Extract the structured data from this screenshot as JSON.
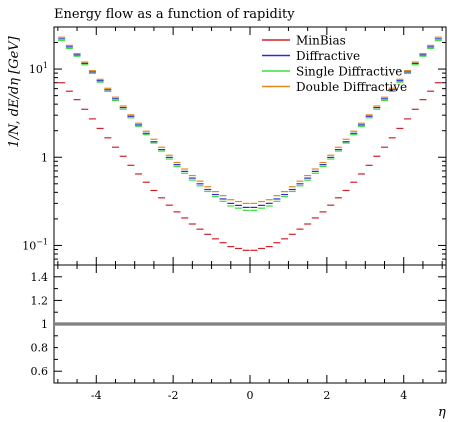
{
  "chart_data": {
    "type": "scatter",
    "title": "Energy flow as a function of rapidity",
    "xlabel": "η",
    "ylabel": "1/N_ev dE/dη [GeV]",
    "ylabel_parts": {
      "main": "1/N, dE/dη [",
      "unit": "GeV",
      "end": "]"
    },
    "xlim": [
      -5.1,
      5.1
    ],
    "ylim": [
      0.06,
      30
    ],
    "yscale": "log",
    "grid": false,
    "legend_position": "top-right",
    "main_y_ticks": [
      {
        "value": 0.1,
        "label": "10",
        "exp": "−1"
      },
      {
        "value": 1,
        "label": "1",
        "exp": ""
      },
      {
        "value": 10,
        "label": "10",
        "exp": "1"
      }
    ],
    "x_ticks": [
      {
        "value": -4,
        "label": "-4"
      },
      {
        "value": -2,
        "label": "-2"
      },
      {
        "value": 0,
        "label": "0"
      },
      {
        "value": 2,
        "label": "2"
      },
      {
        "value": 4,
        "label": "4"
      }
    ],
    "ratio_panel": {
      "ylim": [
        0.5,
        1.5
      ],
      "y_ticks": [
        {
          "value": 0.6,
          "label": "0.6"
        },
        {
          "value": 0.8,
          "label": "0.8"
        },
        {
          "value": 1.0,
          "label": "1"
        },
        {
          "value": 1.2,
          "label": "1.2"
        },
        {
          "value": 1.4,
          "label": "1.4"
        }
      ],
      "reference_value": 1.0,
      "band_color": "#999999"
    },
    "bins": {
      "eta_min": -5.0,
      "eta_max": 5.0,
      "bin_width": 0.2
    },
    "series": [
      {
        "name": "MinBias",
        "color": "#d0202a",
        "eta_abs": [
          0.1,
          0.5,
          1.0,
          1.5,
          2.0,
          2.5,
          3.0,
          3.5,
          4.0,
          4.5,
          4.9
        ],
        "values": [
          0.088,
          0.097,
          0.125,
          0.175,
          0.26,
          0.42,
          0.72,
          1.3,
          2.4,
          4.5,
          7.0
        ]
      },
      {
        "name": "Diffractive",
        "color": "#2b2bd0",
        "eta_abs": [
          0.1,
          0.5,
          1.0,
          1.5,
          2.0,
          2.5,
          3.0,
          3.5,
          4.0,
          4.5,
          4.9
        ],
        "values": [
          0.27,
          0.3,
          0.4,
          0.58,
          0.9,
          1.5,
          2.6,
          4.6,
          8.3,
          14.5,
          22
        ]
      },
      {
        "name": "Single Diffractive",
        "color": "#3ddd3d",
        "eta_abs": [
          0.1,
          0.5,
          1.0,
          1.5,
          2.0,
          2.5,
          3.0,
          3.5,
          4.0,
          4.5,
          4.9
        ],
        "values": [
          0.25,
          0.28,
          0.38,
          0.55,
          0.86,
          1.45,
          2.5,
          4.4,
          8.0,
          14,
          21
        ]
      },
      {
        "name": "Double Diffractive",
        "color": "#e08a1e",
        "eta_abs": [
          0.1,
          0.5,
          1.0,
          1.5,
          2.0,
          2.5,
          3.0,
          3.5,
          4.0,
          4.5,
          4.9
        ],
        "values": [
          0.3,
          0.33,
          0.43,
          0.62,
          0.95,
          1.6,
          2.7,
          4.8,
          8.6,
          15,
          23
        ]
      }
    ]
  }
}
